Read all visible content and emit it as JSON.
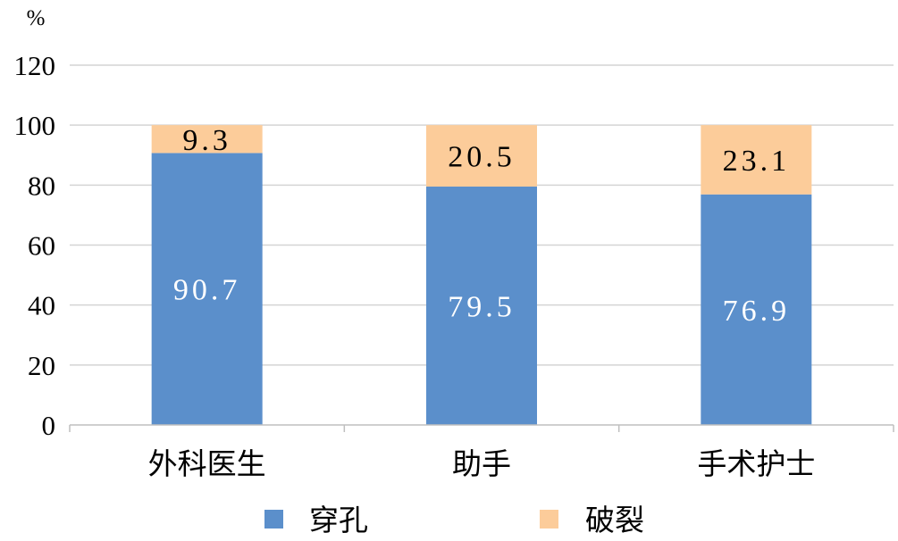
{
  "chart_data": {
    "type": "bar",
    "stacked": true,
    "categories": [
      "外科医生",
      "助手",
      "手术护士"
    ],
    "series": [
      {
        "name": "穿孔",
        "values": [
          90.7,
          79.5,
          76.9
        ],
        "color": "#5B8FCB",
        "label_color": "#ffffff"
      },
      {
        "name": "破裂",
        "values": [
          9.3,
          20.5,
          23.1
        ],
        "color": "#FCCC9A",
        "label_color": "#000000"
      }
    ],
    "data_labels": [
      [
        "90.7",
        "79.5",
        "76.9"
      ],
      [
        "9.3",
        "20.5",
        "23.1"
      ]
    ],
    "y_unit": "%",
    "ylim": [
      0,
      120
    ],
    "yticks": [
      "0",
      "20",
      "40",
      "60",
      "80",
      "100",
      "120"
    ],
    "grid": true,
    "gridline_color": "#D4D4D4",
    "legend_position": "bottom"
  }
}
